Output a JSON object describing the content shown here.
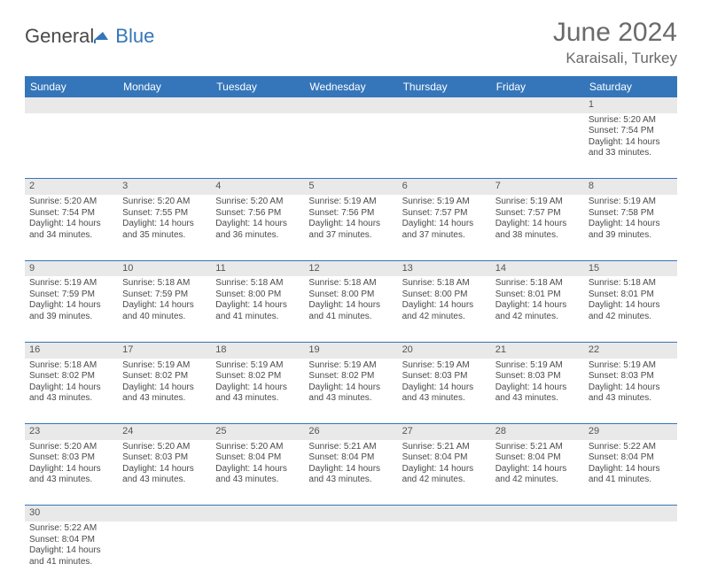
{
  "brand": {
    "part1": "General",
    "part2": "Blue",
    "color_general": "#4a4a4a",
    "color_blue": "#3576ba"
  },
  "title": "June 2024",
  "location": "Karaisali, Turkey",
  "colors": {
    "header_bg": "#3576ba",
    "header_fg": "#ffffff",
    "daynum_bg": "#e9e9e9",
    "rule": "#3576ba",
    "text": "#4a4a4a"
  },
  "fonts": {
    "title_size": 30,
    "location_size": 17,
    "th_size": 12,
    "cell_size": 10,
    "daynum_size": 11
  },
  "weekdays": [
    "Sunday",
    "Monday",
    "Tuesday",
    "Wednesday",
    "Thursday",
    "Friday",
    "Saturday"
  ],
  "first_weekday_index": 6,
  "days": {
    "1": {
      "sunrise": "5:20 AM",
      "sunset": "7:54 PM",
      "daylight": "14 hours and 33 minutes."
    },
    "2": {
      "sunrise": "5:20 AM",
      "sunset": "7:54 PM",
      "daylight": "14 hours and 34 minutes."
    },
    "3": {
      "sunrise": "5:20 AM",
      "sunset": "7:55 PM",
      "daylight": "14 hours and 35 minutes."
    },
    "4": {
      "sunrise": "5:20 AM",
      "sunset": "7:56 PM",
      "daylight": "14 hours and 36 minutes."
    },
    "5": {
      "sunrise": "5:19 AM",
      "sunset": "7:56 PM",
      "daylight": "14 hours and 37 minutes."
    },
    "6": {
      "sunrise": "5:19 AM",
      "sunset": "7:57 PM",
      "daylight": "14 hours and 37 minutes."
    },
    "7": {
      "sunrise": "5:19 AM",
      "sunset": "7:57 PM",
      "daylight": "14 hours and 38 minutes."
    },
    "8": {
      "sunrise": "5:19 AM",
      "sunset": "7:58 PM",
      "daylight": "14 hours and 39 minutes."
    },
    "9": {
      "sunrise": "5:19 AM",
      "sunset": "7:59 PM",
      "daylight": "14 hours and 39 minutes."
    },
    "10": {
      "sunrise": "5:18 AM",
      "sunset": "7:59 PM",
      "daylight": "14 hours and 40 minutes."
    },
    "11": {
      "sunrise": "5:18 AM",
      "sunset": "8:00 PM",
      "daylight": "14 hours and 41 minutes."
    },
    "12": {
      "sunrise": "5:18 AM",
      "sunset": "8:00 PM",
      "daylight": "14 hours and 41 minutes."
    },
    "13": {
      "sunrise": "5:18 AM",
      "sunset": "8:00 PM",
      "daylight": "14 hours and 42 minutes."
    },
    "14": {
      "sunrise": "5:18 AM",
      "sunset": "8:01 PM",
      "daylight": "14 hours and 42 minutes."
    },
    "15": {
      "sunrise": "5:18 AM",
      "sunset": "8:01 PM",
      "daylight": "14 hours and 42 minutes."
    },
    "16": {
      "sunrise": "5:18 AM",
      "sunset": "8:02 PM",
      "daylight": "14 hours and 43 minutes."
    },
    "17": {
      "sunrise": "5:19 AM",
      "sunset": "8:02 PM",
      "daylight": "14 hours and 43 minutes."
    },
    "18": {
      "sunrise": "5:19 AM",
      "sunset": "8:02 PM",
      "daylight": "14 hours and 43 minutes."
    },
    "19": {
      "sunrise": "5:19 AM",
      "sunset": "8:02 PM",
      "daylight": "14 hours and 43 minutes."
    },
    "20": {
      "sunrise": "5:19 AM",
      "sunset": "8:03 PM",
      "daylight": "14 hours and 43 minutes."
    },
    "21": {
      "sunrise": "5:19 AM",
      "sunset": "8:03 PM",
      "daylight": "14 hours and 43 minutes."
    },
    "22": {
      "sunrise": "5:19 AM",
      "sunset": "8:03 PM",
      "daylight": "14 hours and 43 minutes."
    },
    "23": {
      "sunrise": "5:20 AM",
      "sunset": "8:03 PM",
      "daylight": "14 hours and 43 minutes."
    },
    "24": {
      "sunrise": "5:20 AM",
      "sunset": "8:03 PM",
      "daylight": "14 hours and 43 minutes."
    },
    "25": {
      "sunrise": "5:20 AM",
      "sunset": "8:04 PM",
      "daylight": "14 hours and 43 minutes."
    },
    "26": {
      "sunrise": "5:21 AM",
      "sunset": "8:04 PM",
      "daylight": "14 hours and 43 minutes."
    },
    "27": {
      "sunrise": "5:21 AM",
      "sunset": "8:04 PM",
      "daylight": "14 hours and 42 minutes."
    },
    "28": {
      "sunrise": "5:21 AM",
      "sunset": "8:04 PM",
      "daylight": "14 hours and 42 minutes."
    },
    "29": {
      "sunrise": "5:22 AM",
      "sunset": "8:04 PM",
      "daylight": "14 hours and 41 minutes."
    },
    "30": {
      "sunrise": "5:22 AM",
      "sunset": "8:04 PM",
      "daylight": "14 hours and 41 minutes."
    }
  },
  "labels": {
    "sunrise": "Sunrise:",
    "sunset": "Sunset:",
    "daylight": "Daylight:"
  }
}
